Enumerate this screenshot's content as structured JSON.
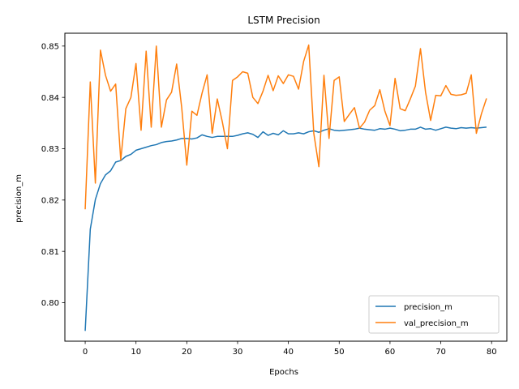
{
  "chart_data": {
    "type": "line",
    "title": "LSTM Precision",
    "xlabel": "Epochs",
    "ylabel": "precision_m",
    "xlim": [
      -4,
      83
    ],
    "ylim": [
      0.7925,
      0.8525
    ],
    "xticks": [
      0,
      10,
      20,
      30,
      40,
      50,
      60,
      70,
      80
    ],
    "yticks": [
      0.8,
      0.81,
      0.82,
      0.83,
      0.84,
      0.85
    ],
    "ytick_labels": [
      "0.80",
      "0.81",
      "0.82",
      "0.83",
      "0.84",
      "0.85"
    ],
    "legend_position": "lower right",
    "grid": false,
    "series": [
      {
        "name": "precision_m",
        "color": "#1f77b4",
        "values": [
          0.7945,
          0.8143,
          0.8201,
          0.8232,
          0.8249,
          0.8257,
          0.8274,
          0.8277,
          0.8285,
          0.8289,
          0.8297,
          0.83,
          0.8303,
          0.8306,
          0.8308,
          0.8312,
          0.8314,
          0.8315,
          0.8317,
          0.832,
          0.832,
          0.8319,
          0.8321,
          0.8327,
          0.8324,
          0.8322,
          0.8324,
          0.8324,
          0.8324,
          0.8324,
          0.8326,
          0.8329,
          0.8331,
          0.8328,
          0.8322,
          0.8333,
          0.8326,
          0.833,
          0.8327,
          0.8335,
          0.8329,
          0.8329,
          0.8331,
          0.8329,
          0.8333,
          0.8335,
          0.8332,
          0.8336,
          0.8339,
          0.8336,
          0.8335,
          0.8336,
          0.8337,
          0.8338,
          0.834,
          0.8338,
          0.8337,
          0.8336,
          0.8339,
          0.8338,
          0.834,
          0.8338,
          0.8335,
          0.8336,
          0.8338,
          0.8338,
          0.8342,
          0.8338,
          0.8339,
          0.8336,
          0.8339,
          0.8342,
          0.834,
          0.8339,
          0.8341,
          0.834,
          0.8341,
          0.834,
          0.8341,
          0.8342
        ]
      },
      {
        "name": "val_precision_m",
        "color": "#ff7f0e",
        "values": [
          0.8182,
          0.843,
          0.8233,
          0.8492,
          0.8443,
          0.8412,
          0.8426,
          0.8278,
          0.8378,
          0.84,
          0.8466,
          0.8336,
          0.849,
          0.8342,
          0.85,
          0.8342,
          0.8395,
          0.841,
          0.8465,
          0.838,
          0.8268,
          0.8373,
          0.8365,
          0.8408,
          0.8444,
          0.833,
          0.8397,
          0.8352,
          0.83,
          0.8433,
          0.844,
          0.845,
          0.8447,
          0.84,
          0.8388,
          0.8412,
          0.8443,
          0.8413,
          0.8442,
          0.8427,
          0.8444,
          0.8441,
          0.8416,
          0.847,
          0.8502,
          0.833,
          0.8265,
          0.8443,
          0.832,
          0.8433,
          0.844,
          0.8353,
          0.8367,
          0.838,
          0.834,
          0.8352,
          0.8375,
          0.8384,
          0.8415,
          0.8373,
          0.8345,
          0.8437,
          0.8378,
          0.8374,
          0.8397,
          0.8422,
          0.8495,
          0.841,
          0.8355,
          0.8404,
          0.8403,
          0.8423,
          0.8406,
          0.8404,
          0.8405,
          0.8408,
          0.8444,
          0.833,
          0.8368,
          0.8398
        ]
      }
    ]
  }
}
